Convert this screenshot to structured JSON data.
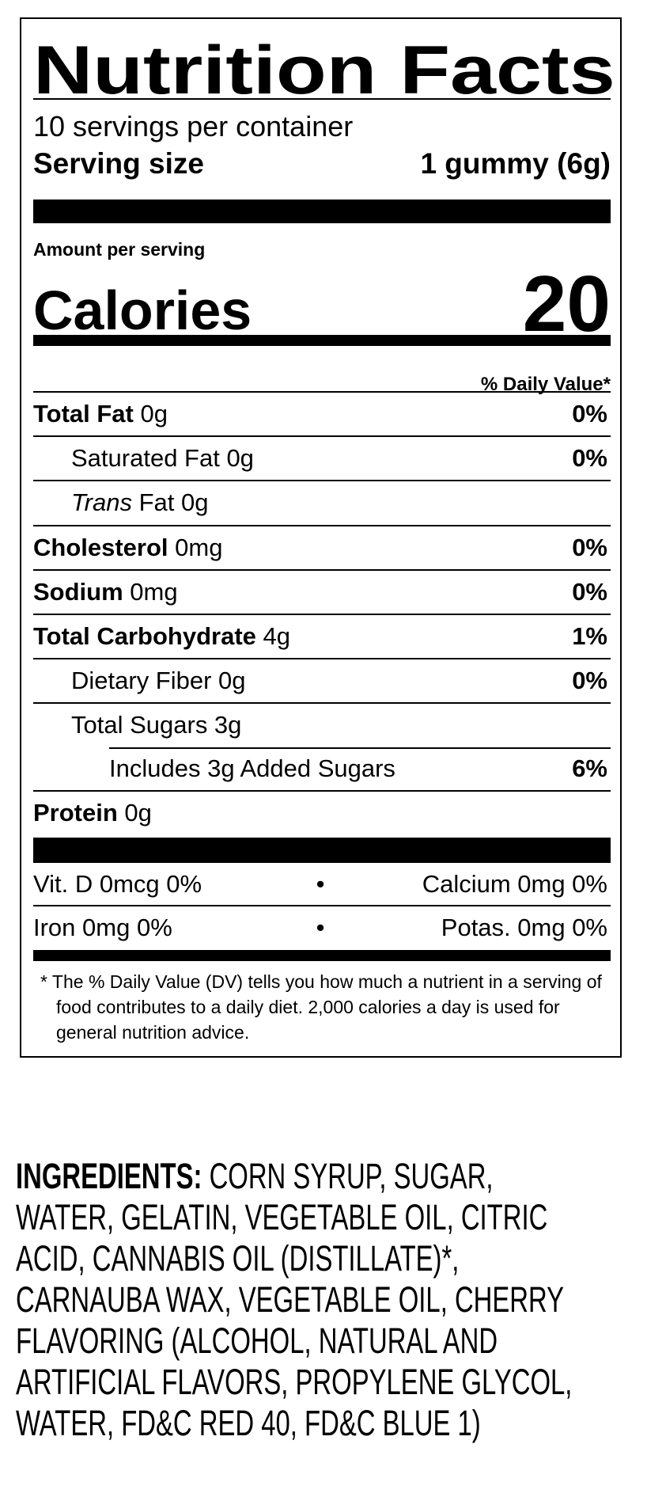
{
  "label": {
    "title": "Nutrition Facts",
    "servings_per_container": "10 servings per container",
    "serving_size_label": "Serving size",
    "serving_size_value": "1 gummy (6g)",
    "amount_per_serving": "Amount per serving",
    "calories_label": "Calories",
    "calories_value": "20",
    "daily_value_header": "% Daily Value*",
    "nutrients": [
      {
        "name": "Total Fat",
        "amount": " 0g",
        "dv": "0%"
      },
      {
        "name": "Saturated Fat 0g",
        "dv": "0%"
      },
      {
        "name_italic": "Trans",
        "name_rest": " Fat 0g"
      },
      {
        "name": "Cholesterol",
        "amount": " 0mg",
        "dv": "0%"
      },
      {
        "name": "Sodium",
        "amount": " 0mg",
        "dv": "0%"
      },
      {
        "name": "Total Carbohydrate",
        "amount": " 4g",
        "dv": "1%"
      },
      {
        "name": "Dietary Fiber 0g",
        "dv": "0%"
      },
      {
        "name": "Total Sugars 3g"
      },
      {
        "name": "Includes 3g Added Sugars",
        "dv": "6%"
      },
      {
        "name": "Protein",
        "amount": " 0g"
      }
    ],
    "vitamins": [
      {
        "left": "Vit. D 0mcg 0%",
        "sep": "•",
        "right": "Calcium 0mg 0%"
      },
      {
        "left": "Iron 0mg 0%",
        "sep": "•",
        "right": "Potas. 0mg 0%"
      }
    ],
    "footnote": "* The % Daily Value (DV) tells you how much a nutrient in a serving of food contributes to a daily diet. 2,000 calories a day is used for general nutrition advice."
  },
  "ingredients": {
    "heading": "INGREDIENTS:",
    "lines": [
      " CORN SYRUP, SUGAR,",
      "WATER, GELATIN, VEGETABLE OIL, CITRIC",
      "ACID, CANNABIS OIL (DISTILLATE)*,",
      "CARNAUBA WAX, VEGETABLE OIL, CHERRY",
      "FLAVORING (ALCOHOL, NATURAL AND",
      "ARTIFICIAL FLAVORS, PROPYLENE GLYCOL,",
      "WATER, FD&C RED 40, FD&C BLUE 1)"
    ]
  }
}
